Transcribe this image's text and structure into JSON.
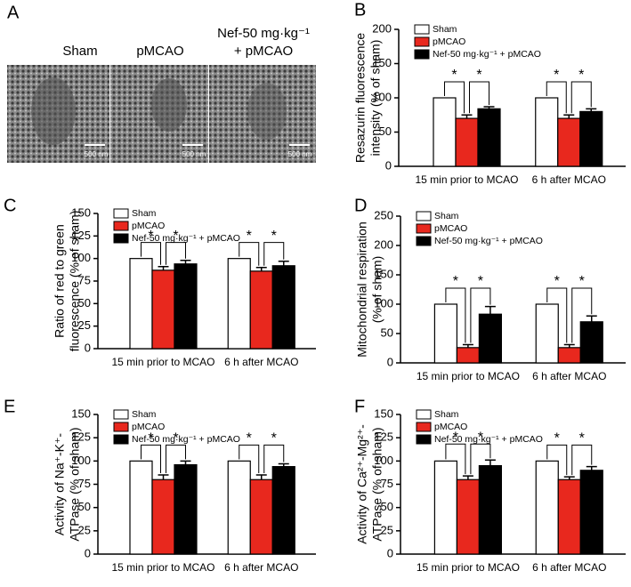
{
  "figure_a": {
    "panel": "A",
    "labels": [
      "Sham",
      "pMCAO",
      "Nef-50 mg·kg⁻¹",
      "+ pMCAO"
    ],
    "scale_bar": "500 nm"
  },
  "chart_data": [
    {
      "type": "bar",
      "panel": "B",
      "ylabel": [
        "Resazurin fluorescence",
        "intensity (% of sham)"
      ],
      "categories": [
        "15 min prior to MCAO",
        "6 h after MCAO"
      ],
      "series": [
        {
          "name": "Sham",
          "color": "#ffffff",
          "values": [
            100,
            100
          ]
        },
        {
          "name": "pMCAO",
          "color": "#e8281e",
          "values": [
            70,
            70
          ],
          "errors": [
            5,
            5
          ]
        },
        {
          "name": "Nef-50 mg·kg⁻¹ + pMCAO",
          "color": "#000000",
          "values": [
            84,
            80
          ],
          "errors": [
            3,
            4
          ]
        }
      ],
      "ylim": [
        0,
        200
      ],
      "yticks": [
        0,
        50,
        100,
        150,
        200
      ],
      "significance": "*"
    },
    {
      "type": "bar",
      "panel": "C",
      "ylabel": [
        "Ratio of red to green",
        "fluorescence (% of sham)"
      ],
      "categories": [
        "15 min prior to MCAO",
        "6 h after MCAO"
      ],
      "series": [
        {
          "name": "Sham",
          "color": "#ffffff",
          "values": [
            100,
            100
          ]
        },
        {
          "name": "pMCAO",
          "color": "#e8281e",
          "values": [
            87,
            86
          ],
          "errors": [
            4,
            4
          ]
        },
        {
          "name": "Nef-50 mg·kg⁻¹ + pMCAO",
          "color": "#000000",
          "values": [
            94,
            92
          ],
          "errors": [
            4,
            5
          ]
        }
      ],
      "ylim": [
        0,
        150
      ],
      "yticks": [
        0,
        25,
        50,
        75,
        100,
        125,
        150
      ],
      "significance": "*"
    },
    {
      "type": "bar",
      "panel": "D",
      "ylabel": [
        "Mitochondrial respiration",
        "(% of sham)"
      ],
      "categories": [
        "15 min prior to MCAO",
        "6 h after MCAO"
      ],
      "series": [
        {
          "name": "Sham",
          "color": "#ffffff",
          "values": [
            100,
            100
          ]
        },
        {
          "name": "pMCAO",
          "color": "#e8281e",
          "values": [
            26,
            26
          ],
          "errors": [
            5,
            5
          ]
        },
        {
          "name": "Nef-50 mg·kg⁻¹ + pMCAO",
          "color": "#000000",
          "values": [
            83,
            70
          ],
          "errors": [
            13,
            10
          ]
        }
      ],
      "ylim": [
        0,
        250
      ],
      "yticks": [
        0,
        50,
        100,
        150,
        200,
        250
      ],
      "significance": "*"
    },
    {
      "type": "bar",
      "panel": "E",
      "ylabel": [
        "Activity of Na⁺-K⁺-",
        "ATPase (% of sham)"
      ],
      "categories": [
        "15 min prior to MCAO",
        "6 h after MCAO"
      ],
      "series": [
        {
          "name": "Sham",
          "color": "#ffffff",
          "values": [
            100,
            100
          ]
        },
        {
          "name": "pMCAO",
          "color": "#e8281e",
          "values": [
            80,
            80
          ],
          "errors": [
            5,
            5
          ]
        },
        {
          "name": "Nef-50 mg·kg⁻¹ + pMCAO",
          "color": "#000000",
          "values": [
            96,
            94
          ],
          "errors": [
            4,
            3
          ]
        }
      ],
      "ylim": [
        0,
        150
      ],
      "yticks": [
        0,
        25,
        50,
        75,
        100,
        125,
        150
      ],
      "significance": "*"
    },
    {
      "type": "bar",
      "panel": "F",
      "ylabel": [
        "Activity of Ca²⁺-Mg²⁺-",
        "ATPase (% of sham)"
      ],
      "categories": [
        "15 min prior to MCAO",
        "6 h after MCAO"
      ],
      "series": [
        {
          "name": "Sham",
          "color": "#ffffff",
          "values": [
            100,
            100
          ]
        },
        {
          "name": "pMCAO",
          "color": "#e8281e",
          "values": [
            80,
            80
          ],
          "errors": [
            4,
            3
          ]
        },
        {
          "name": "Nef-50 mg·kg⁻¹ + pMCAO",
          "color": "#000000",
          "values": [
            95,
            90
          ],
          "errors": [
            6,
            4
          ]
        }
      ],
      "ylim": [
        0,
        150
      ],
      "yticks": [
        0,
        25,
        50,
        75,
        100,
        125,
        150
      ],
      "significance": "*"
    }
  ]
}
